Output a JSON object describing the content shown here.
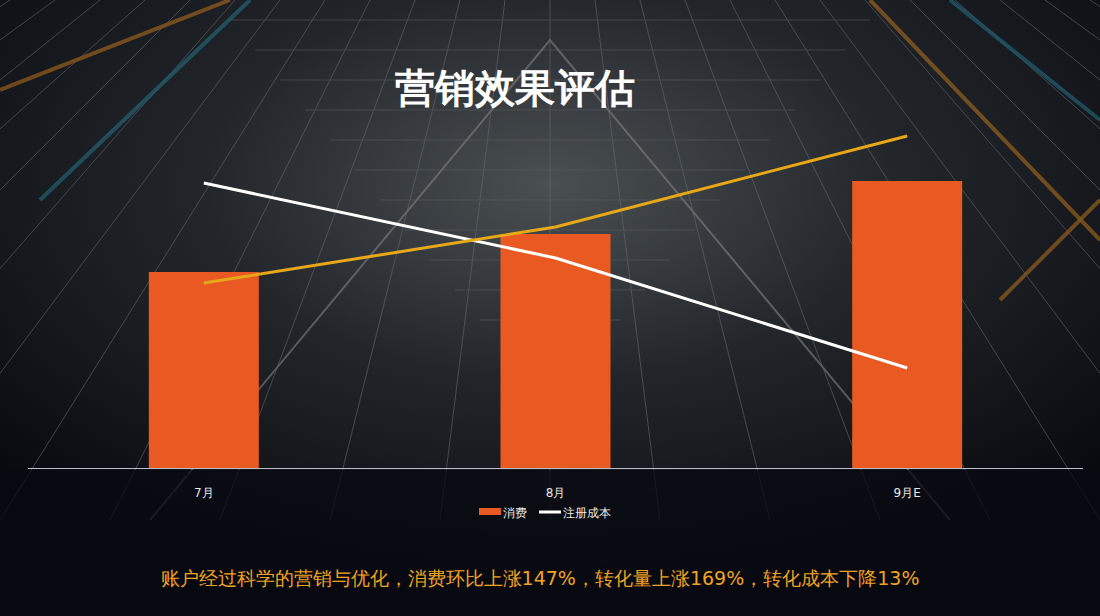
{
  "chart_data": {
    "type": "bar",
    "title": "营销效果评估",
    "annotation": "账户经过科学的营销与优化，消费环比上涨147%，转化量上涨169%，转化成本下降13%",
    "categories": [
      "7月",
      "8月",
      "9月E"
    ],
    "series": [
      {
        "name": "消费",
        "type": "bar",
        "color": "#e85a22",
        "values": [
          196,
          234,
          287
        ]
      },
      {
        "name": "注册成本",
        "type": "line",
        "color": "#ffffff",
        "values": [
          285,
          210,
          100
        ]
      },
      {
        "type": "line",
        "color": "#e6a817",
        "values": [
          185,
          241,
          332
        ]
      }
    ],
    "ylim": [
      0,
      350
    ],
    "tick_labels": "x",
    "legend": "bottom"
  }
}
